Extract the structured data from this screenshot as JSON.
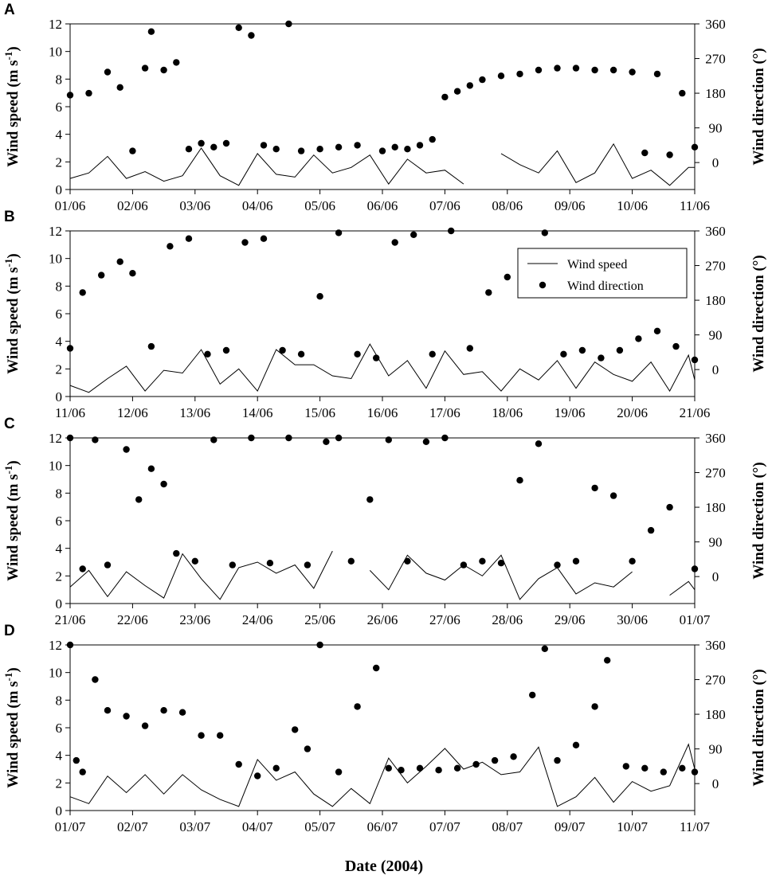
{
  "figure": {
    "xlabel": "Date (2004)",
    "colors": {
      "line": "#000000",
      "points": "#000000",
      "background": "#ffffff"
    },
    "legend": {
      "location": "panel B, upper right",
      "line_label": "Wind speed",
      "points_label": "Wind direction"
    }
  },
  "chart_data": [
    {
      "type": "line",
      "panel": "A",
      "ylabel": "Wind speed (m s-1)",
      "ylabel_main": "Wind speed (m s",
      "ylabel_sup": "-1",
      "ylabel_close": ")",
      "y2label": "Wind direction (°)",
      "ylim": [
        0,
        12
      ],
      "y2lim": [
        -70,
        360
      ],
      "yticks": [
        "0",
        "2",
        "4",
        "6",
        "8",
        "10",
        "12"
      ],
      "y2ticks": [
        "0",
        "90",
        "180",
        "270",
        "360"
      ],
      "x_labels": [
        "01/06",
        "02/06",
        "03/06",
        "04/06",
        "05/06",
        "06/06",
        "07/06",
        "08/06",
        "09/06",
        "10/06",
        "11/06"
      ],
      "series": [
        {
          "name": "Wind speed",
          "axis": "left",
          "x_day": [
            0,
            0.3,
            0.6,
            0.9,
            1.2,
            1.5,
            1.8,
            2.1,
            2.4,
            2.7,
            3.0,
            3.3,
            3.6,
            3.9,
            4.2,
            4.5,
            4.8,
            5.1,
            5.4,
            5.7,
            6.0,
            6.3,
            6.6,
            6.9,
            7.2,
            7.5,
            7.8,
            8.1,
            8.4,
            8.7,
            9.0,
            9.3,
            9.6,
            9.9,
            10.0
          ],
          "values": [
            0.8,
            1.2,
            2.4,
            0.8,
            1.3,
            0.6,
            1.0,
            3.0,
            1.0,
            0.3,
            2.6,
            1.1,
            0.9,
            2.5,
            1.2,
            1.6,
            2.5,
            0.4,
            2.2,
            1.2,
            1.4,
            0.4,
            null,
            2.6,
            1.8,
            1.2,
            2.8,
            0.5,
            1.2,
            3.3,
            0.8,
            1.4,
            0.3,
            1.6,
            1.6
          ]
        },
        {
          "name": "Wind direction",
          "axis": "right",
          "x_day": [
            0,
            0.3,
            0.6,
            0.8,
            1.0,
            1.2,
            1.3,
            1.5,
            1.7,
            1.9,
            2.1,
            2.3,
            2.5,
            2.7,
            2.9,
            3.1,
            3.3,
            3.5,
            3.7,
            4.0,
            4.3,
            4.6,
            5.0,
            5.2,
            5.4,
            5.6,
            5.8,
            6.0,
            6.2,
            6.4,
            6.6,
            6.9,
            7.2,
            7.5,
            7.8,
            8.1,
            8.4,
            8.7,
            9.0,
            9.2,
            9.4,
            9.6,
            9.8,
            10.0
          ],
          "values": [
            175,
            180,
            235,
            195,
            30,
            245,
            340,
            240,
            260,
            35,
            50,
            40,
            50,
            350,
            330,
            45,
            35,
            360,
            30,
            35,
            40,
            45,
            30,
            40,
            35,
            45,
            60,
            170,
            185,
            200,
            215,
            225,
            230,
            240,
            245,
            245,
            240,
            240,
            235,
            25,
            230,
            20,
            180,
            40
          ]
        }
      ]
    },
    {
      "type": "line",
      "panel": "B",
      "ylabel": "Wind speed (m s-1)",
      "ylabel_main": "Wind speed (m s",
      "ylabel_sup": "-1",
      "ylabel_close": ")",
      "y2label": "Wind direction (°)",
      "ylim": [
        0,
        12
      ],
      "y2lim": [
        -70,
        360
      ],
      "yticks": [
        "0",
        "2",
        "4",
        "6",
        "8",
        "10",
        "12"
      ],
      "y2ticks": [
        "0",
        "90",
        "180",
        "270",
        "360"
      ],
      "x_labels": [
        "11/06",
        "12/06",
        "13/06",
        "14/06",
        "15/06",
        "16/06",
        "17/06",
        "18/06",
        "19/06",
        "20/06",
        "21/06"
      ],
      "series": [
        {
          "name": "Wind speed",
          "axis": "left",
          "x_day": [
            0,
            0.3,
            0.6,
            0.9,
            1.2,
            1.5,
            1.8,
            2.1,
            2.4,
            2.7,
            3.0,
            3.3,
            3.6,
            3.9,
            4.2,
            4.5,
            4.8,
            5.1,
            5.4,
            5.7,
            6.0,
            6.3,
            6.6,
            6.9,
            7.2,
            7.5,
            7.8,
            8.1,
            8.4,
            8.7,
            9.0,
            9.3,
            9.6,
            9.9,
            10.0
          ],
          "values": [
            0.8,
            0.3,
            1.3,
            2.2,
            0.4,
            1.9,
            1.7,
            3.4,
            0.9,
            2.0,
            0.4,
            3.4,
            2.3,
            2.3,
            1.5,
            1.3,
            3.8,
            1.5,
            2.6,
            0.6,
            3.3,
            1.6,
            1.8,
            0.4,
            2.0,
            1.2,
            2.6,
            0.6,
            2.5,
            1.6,
            1.1,
            2.5,
            0.4,
            3.0,
            1.2
          ]
        },
        {
          "name": "Wind direction",
          "axis": "right",
          "x_day": [
            0,
            0.2,
            0.5,
            0.8,
            1.0,
            1.3,
            1.6,
            1.9,
            2.2,
            2.5,
            2.8,
            3.1,
            3.4,
            3.7,
            4.0,
            4.3,
            4.6,
            4.9,
            5.2,
            5.5,
            5.8,
            6.1,
            6.4,
            6.7,
            7.0,
            7.3,
            7.6,
            7.9,
            8.2,
            8.5,
            8.8,
            9.1,
            9.4,
            9.7,
            10.0
          ],
          "values": [
            55,
            200,
            245,
            280,
            250,
            60,
            320,
            340,
            40,
            50,
            330,
            340,
            50,
            40,
            190,
            355,
            40,
            30,
            330,
            350,
            40,
            360,
            55,
            200,
            240,
            280,
            355,
            40,
            50,
            30,
            50,
            80,
            100,
            60,
            25
          ]
        }
      ]
    },
    {
      "type": "line",
      "panel": "C",
      "ylabel": "Wind speed (m s-1)",
      "ylabel_main": "Wind speed (m s",
      "ylabel_sup": "-1",
      "ylabel_close": ")",
      "y2label": "Wind direction (°)",
      "ylim": [
        0,
        12
      ],
      "y2lim": [
        -70,
        360
      ],
      "yticks": [
        "0",
        "2",
        "4",
        "6",
        "8",
        "10",
        "12"
      ],
      "y2ticks": [
        "0",
        "90",
        "180",
        "270",
        "360"
      ],
      "x_labels": [
        "21/06",
        "22/06",
        "23/06",
        "24/06",
        "25/06",
        "26/06",
        "27/06",
        "28/06",
        "29/06",
        "30/06",
        "01/07"
      ],
      "series": [
        {
          "name": "Wind speed",
          "axis": "left",
          "x_day": [
            0,
            0.3,
            0.6,
            0.9,
            1.2,
            1.5,
            1.8,
            2.1,
            2.4,
            2.7,
            3.0,
            3.3,
            3.6,
            3.9,
            4.2,
            4.5,
            4.8,
            5.1,
            5.4,
            5.7,
            6.0,
            6.3,
            6.6,
            6.9,
            7.2,
            7.5,
            7.8,
            8.1,
            8.4,
            8.7,
            9.0,
            9.3,
            9.6,
            9.9,
            10.0
          ],
          "values": [
            1.2,
            2.4,
            0.5,
            2.3,
            1.3,
            0.4,
            3.6,
            1.8,
            0.3,
            2.6,
            3.0,
            2.2,
            2.8,
            1.1,
            3.8,
            null,
            2.4,
            1.0,
            3.5,
            2.2,
            1.7,
            2.8,
            2.0,
            3.5,
            0.3,
            1.8,
            2.6,
            0.7,
            1.5,
            1.2,
            2.3,
            null,
            0.6,
            1.6,
            1.0
          ]
        },
        {
          "name": "Wind direction",
          "axis": "right",
          "x_day": [
            0,
            0.2,
            0.4,
            0.6,
            0.9,
            1.1,
            1.3,
            1.5,
            1.7,
            2.0,
            2.3,
            2.6,
            2.9,
            3.2,
            3.5,
            3.8,
            4.1,
            4.3,
            4.5,
            4.8,
            5.1,
            5.4,
            5.7,
            6.0,
            6.3,
            6.6,
            6.9,
            7.2,
            7.5,
            7.8,
            8.1,
            8.4,
            8.7,
            9.0,
            9.3,
            9.6,
            10.0
          ],
          "values": [
            360,
            20,
            355,
            30,
            330,
            200,
            280,
            240,
            60,
            40,
            355,
            30,
            360,
            35,
            360,
            30,
            350,
            360,
            40,
            200,
            355,
            40,
            350,
            360,
            30,
            40,
            35,
            250,
            345,
            30,
            40,
            230,
            210,
            40,
            120,
            180,
            20
          ]
        }
      ]
    },
    {
      "type": "line",
      "panel": "D",
      "ylabel": "Wind speed (m s-1)",
      "ylabel_main": "Wind speed (m s",
      "ylabel_sup": "-1",
      "ylabel_close": ")",
      "y2label": "Wind direction (°)",
      "ylim": [
        0,
        12
      ],
      "y2lim": [
        -70,
        360
      ],
      "yticks": [
        "0",
        "2",
        "4",
        "6",
        "8",
        "10",
        "12"
      ],
      "y2ticks": [
        "0",
        "90",
        "180",
        "270",
        "360"
      ],
      "x_labels": [
        "01/07",
        "02/07",
        "03/07",
        "04/07",
        "05/07",
        "06/07",
        "07/07",
        "08/07",
        "09/07",
        "10/07",
        "11/07"
      ],
      "series": [
        {
          "name": "Wind speed",
          "axis": "left",
          "x_day": [
            0,
            0.3,
            0.6,
            0.9,
            1.2,
            1.5,
            1.8,
            2.1,
            2.4,
            2.7,
            3.0,
            3.3,
            3.6,
            3.9,
            4.2,
            4.5,
            4.8,
            5.1,
            5.4,
            5.7,
            6.0,
            6.3,
            6.6,
            6.9,
            7.2,
            7.5,
            7.8,
            8.1,
            8.4,
            8.7,
            9.0,
            9.3,
            9.6,
            9.9,
            10.0
          ],
          "values": [
            1.0,
            0.5,
            2.5,
            1.3,
            2.6,
            1.2,
            2.6,
            1.5,
            0.8,
            0.3,
            3.7,
            2.2,
            2.8,
            1.2,
            0.3,
            1.6,
            0.5,
            3.8,
            2.0,
            3.2,
            4.5,
            3.0,
            3.5,
            2.6,
            2.8,
            4.6,
            0.3,
            1.0,
            2.4,
            0.6,
            2.1,
            1.4,
            1.8,
            4.8,
            3.0
          ]
        },
        {
          "name": "Wind direction",
          "axis": "right",
          "x_day": [
            0,
            0.1,
            0.2,
            0.4,
            0.6,
            0.9,
            1.2,
            1.5,
            1.8,
            2.1,
            2.4,
            2.7,
            3.0,
            3.3,
            3.6,
            3.8,
            4.0,
            4.3,
            4.6,
            4.9,
            5.1,
            5.3,
            5.6,
            5.9,
            6.2,
            6.5,
            6.8,
            7.1,
            7.4,
            7.6,
            7.8,
            8.1,
            8.4,
            8.6,
            8.9,
            9.2,
            9.5,
            9.8,
            10.0
          ],
          "values": [
            360,
            60,
            30,
            270,
            190,
            175,
            150,
            190,
            185,
            125,
            125,
            50,
            20,
            40,
            140,
            90,
            360,
            30,
            200,
            300,
            40,
            35,
            40,
            35,
            40,
            50,
            60,
            70,
            230,
            350,
            60,
            100,
            200,
            320,
            45,
            40,
            30,
            40,
            30
          ]
        }
      ]
    }
  ]
}
